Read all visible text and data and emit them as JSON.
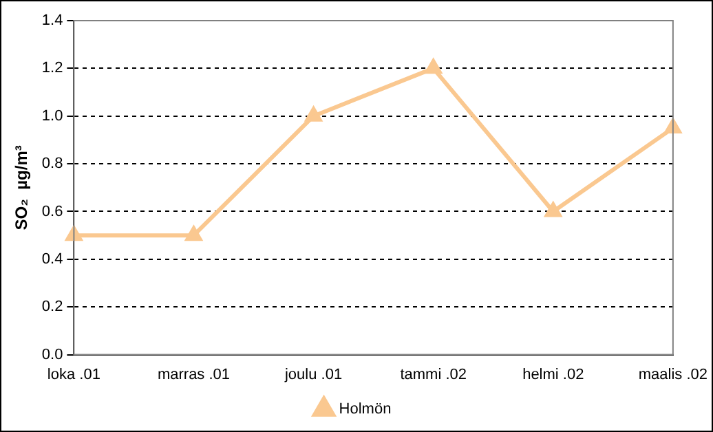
{
  "chart_data": {
    "type": "line",
    "ylabel": "SO₂  µg/m³",
    "categories": [
      "loka .01",
      "marras .01",
      "joulu .01",
      "tammi .02",
      "helmi .02",
      "maalis .02"
    ],
    "series": [
      {
        "name": "Holmön",
        "color": "#fac890",
        "values": [
          0.5,
          0.5,
          1.0,
          1.2,
          0.6,
          0.95
        ]
      }
    ],
    "ylim": [
      0,
      1.4
    ],
    "yticks": [
      {
        "value": 0,
        "label": "0.0"
      },
      {
        "value": 0.2,
        "label": "0.2"
      },
      {
        "value": 0.4,
        "label": "0.4"
      },
      {
        "value": 0.6,
        "label": "0.6"
      },
      {
        "value": 0.8,
        "label": "0.8"
      },
      {
        "value": 1,
        "label": "1.0"
      },
      {
        "value": 1.2,
        "label": "1.2"
      },
      {
        "value": 1.4,
        "label": "1.4"
      }
    ],
    "grid": "y",
    "legend": "bottom",
    "marker": "triangle",
    "line_style": "solid"
  }
}
